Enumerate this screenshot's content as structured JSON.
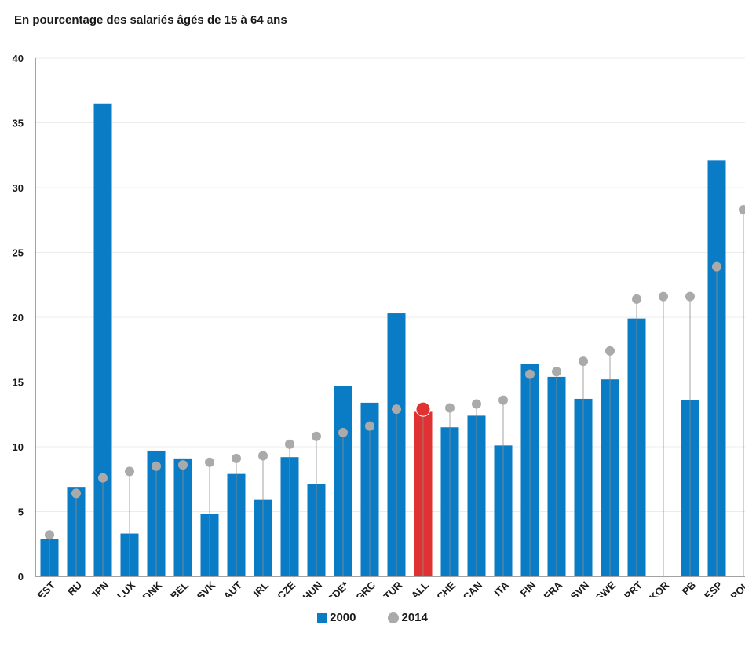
{
  "chart_data": {
    "type": "bar",
    "subtitle": "En pourcentage des salariés âgés de 15 à 64 ans",
    "categories": [
      "EST",
      "RU",
      "JPN",
      "LUX",
      "DNK",
      "BEL",
      "SVK",
      "AUT",
      "IRL",
      "CZE",
      "HUN",
      "OCDE*",
      "GRC",
      "TUR",
      "ALL",
      "CHE",
      "CAN",
      "ITA",
      "FIN",
      "FRA",
      "SVN",
      "SWE",
      "PRT",
      "KOR",
      "PB",
      "ESP",
      "POL"
    ],
    "series": [
      {
        "name": "2000",
        "type": "bar",
        "values": [
          2.9,
          6.9,
          36.5,
          3.3,
          9.7,
          9.1,
          4.8,
          7.9,
          5.9,
          9.2,
          7.1,
          14.7,
          13.4,
          20.3,
          12.7,
          11.5,
          12.4,
          10.1,
          16.4,
          15.4,
          13.7,
          15.2,
          19.9,
          null,
          13.6,
          32.1,
          null
        ]
      },
      {
        "name": "2014",
        "type": "scatter",
        "values": [
          3.2,
          6.4,
          7.6,
          8.1,
          8.5,
          8.6,
          8.8,
          9.1,
          9.3,
          10.2,
          10.8,
          11.1,
          11.6,
          12.9,
          12.9,
          13.0,
          13.3,
          13.6,
          15.6,
          15.8,
          16.6,
          17.4,
          21.4,
          21.6,
          21.6,
          23.9,
          28.3
        ]
      }
    ],
    "highlight_category": "ALL",
    "ylim": [
      0,
      40
    ],
    "yticks": [
      0,
      5,
      10,
      15,
      20,
      25,
      30,
      35,
      40
    ],
    "grid": true,
    "legend_position": "bottom-center",
    "colors": {
      "bar": "#0a7bc5",
      "highlight": "#e03232",
      "dot": "#aaaaaa",
      "stem": "#8c8c8c",
      "grid": "#ececec",
      "axis": "#444444"
    }
  }
}
